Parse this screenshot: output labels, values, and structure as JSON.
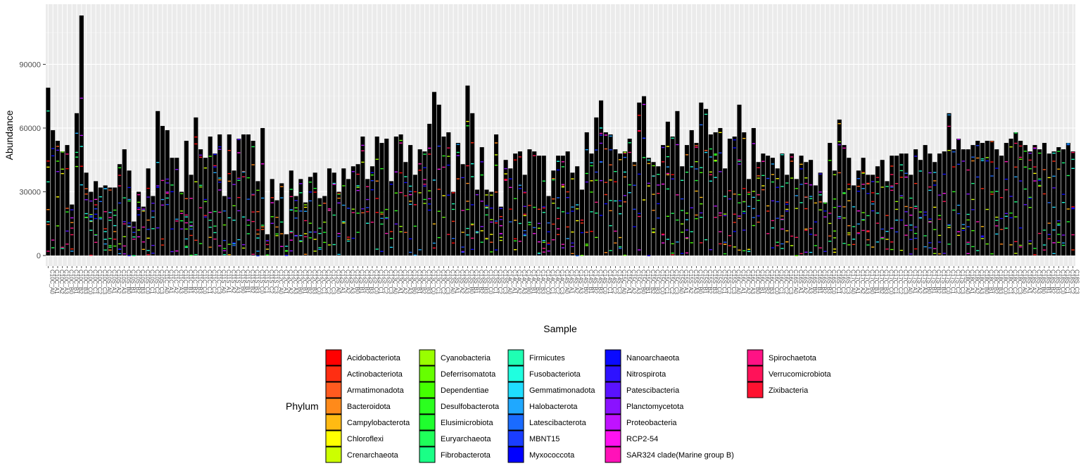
{
  "chart_data": {
    "type": "bar",
    "stacked": true,
    "xlabel": "Sample",
    "ylabel": "Abundance",
    "ylim": [
      0,
      119000
    ],
    "y_ticks": [
      0,
      30000,
      60000,
      90000
    ],
    "y_tick_labels": [
      "0",
      "30000",
      "60000",
      "90000"
    ],
    "grid": true,
    "legend_position": "bottom",
    "legend_title": "Phylum",
    "legend": [
      {
        "name": "Acidobacteriota",
        "color": "#FF0000"
      },
      {
        "name": "Actinobacteriota",
        "color": "#FF2E12"
      },
      {
        "name": "Armatimonadota",
        "color": "#FF5A1F"
      },
      {
        "name": "Bacteroidota",
        "color": "#FF8A1A"
      },
      {
        "name": "Campylobacterota",
        "color": "#FFBA12"
      },
      {
        "name": "Chloroflexi",
        "color": "#FFFF00"
      },
      {
        "name": "Crenarchaeota",
        "color": "#CCFF00"
      },
      {
        "name": "Cyanobacteria",
        "color": "#99FF00"
      },
      {
        "name": "Deferrisomatota",
        "color": "#66FF00"
      },
      {
        "name": "Dependentiae",
        "color": "#44FF00"
      },
      {
        "name": "Desulfobacterota",
        "color": "#2BFF1F"
      },
      {
        "name": "Elusimicrobiota",
        "color": "#1FFF2E"
      },
      {
        "name": "Euryarchaeota",
        "color": "#1FFF5A"
      },
      {
        "name": "Fibrobacterota",
        "color": "#1AFF86"
      },
      {
        "name": "Firmicutes",
        "color": "#1FFFB3"
      },
      {
        "name": "Fusobacteriota",
        "color": "#1FFFE0"
      },
      {
        "name": "Gemmatimonadota",
        "color": "#1FDDFF"
      },
      {
        "name": "Halobacterota",
        "color": "#1FA8FF"
      },
      {
        "name": "Latescibacterota",
        "color": "#1A6BFF"
      },
      {
        "name": "MBNT15",
        "color": "#1A3DFF"
      },
      {
        "name": "Myxococcota",
        "color": "#0000FF"
      },
      {
        "name": "Nanoarchaeota",
        "color": "#0A0AFF"
      },
      {
        "name": "Nitrospirota",
        "color": "#2E12FF"
      },
      {
        "name": "Patescibacteria",
        "color": "#5A12FF"
      },
      {
        "name": "Planctomycetota",
        "color": "#8A12FF"
      },
      {
        "name": "Proteobacteria",
        "color": "#C012FF"
      },
      {
        "name": "RCP2-54",
        "color": "#FF12F0"
      },
      {
        "name": "SAR324 clade(Marine group B)",
        "color": "#FF12B8"
      },
      {
        "name": "Spirochaetota",
        "color": "#FF1285"
      },
      {
        "name": "Verrucomicrobiota",
        "color": "#FF1259"
      },
      {
        "name": "Zixibacteria",
        "color": "#FF1230"
      }
    ],
    "sample_count": 216,
    "sample_totals": [
      79000,
      59000,
      54000,
      49000,
      52000,
      24000,
      67000,
      113000,
      39000,
      30000,
      35000,
      32000,
      33000,
      32000,
      32000,
      43000,
      50000,
      40000,
      16000,
      30000,
      23000,
      41000,
      28000,
      68000,
      61000,
      59000,
      46000,
      46000,
      30000,
      54000,
      38000,
      65000,
      50000,
      46000,
      56000,
      48000,
      57000,
      28000,
      57000,
      40000,
      55000,
      57000,
      57000,
      54000,
      35000,
      60000,
      10000,
      36000,
      26000,
      34000,
      10000,
      40000,
      28000,
      36000,
      25000,
      37000,
      39000,
      27000,
      28000,
      41000,
      39000,
      30000,
      41000,
      36000,
      42000,
      43000,
      56000,
      36000,
      42000,
      56000,
      53000,
      55000,
      35000,
      56000,
      57000,
      44000,
      52000,
      38000,
      50000,
      49000,
      62000,
      77000,
      71000,
      56000,
      58000,
      30000,
      53000,
      43000,
      80000,
      67000,
      31000,
      51000,
      31000,
      30000,
      57000,
      23000,
      45000,
      41000,
      48000,
      49000,
      38000,
      50000,
      49000,
      47000,
      47000,
      28000,
      40000,
      47000,
      47000,
      49000,
      39000,
      42000,
      31000,
      58000,
      48000,
      65000,
      73000,
      58000,
      57000,
      50000,
      48000,
      49000,
      55000,
      44000,
      72000,
      75000,
      46000,
      44000,
      42000,
      52000,
      63000,
      56000,
      68000,
      42000,
      52000,
      59000,
      53000,
      72000,
      69000,
      57000,
      58000,
      60000,
      41000,
      55000,
      56000,
      71000,
      58000,
      36000,
      60000,
      44000,
      48000,
      47000,
      46000,
      41000,
      48000,
      38000,
      48000,
      36000,
      47000,
      44000,
      45000,
      33000,
      39000,
      25000,
      53000,
      40000,
      64000,
      52000,
      46000,
      33000,
      40000,
      46000,
      38000,
      38000,
      42000,
      45000,
      35000,
      47000,
      47000,
      48000,
      48000,
      38000,
      50000,
      45000,
      52000,
      48000,
      44000,
      48000,
      49000,
      67000,
      50000,
      55000,
      50000,
      50000,
      52000,
      54000,
      53000,
      54000,
      54000,
      50000,
      47000,
      53000,
      55000,
      58000,
      54000,
      52000,
      49000,
      52000,
      50000,
      53000,
      48000,
      49000,
      51000,
      50000,
      53000,
      49000
    ],
    "sample_labels": [
      "C10C_A0",
      "C10C_A1",
      "C10C_A2",
      "C10C_A3",
      "C10C_B0",
      "C10C_B1",
      "C10C_B2",
      "C10C_B3",
      "C10C_C0",
      "C10C_C1",
      "C10C_C2",
      "C10C_C3",
      "C10S_A0",
      "C10S_A1",
      "C10S_A2",
      "C10S_A3",
      "C10S_B0",
      "C10S_B1",
      "C10S_B2",
      "C10S_B3",
      "C10S_C0",
      "C10S_C1",
      "C10S_C2",
      "C10S_C3",
      "C11C_A0",
      "C11C_A1",
      "C11C_A2",
      "C11C_A3",
      "C11C_B0",
      "C11C_B1",
      "C11C_B2",
      "C11C_B3",
      "C11C_C0",
      "C11C_C1",
      "C11C_C2",
      "C11C_C3",
      "C11S_A0",
      "C11S_A1",
      "C11S_A2",
      "C11S_A3",
      "C11S_B0",
      "C11S_B1",
      "C11S_B2",
      "C11S_B3",
      "C11S_C0",
      "C11S_C1",
      "C11S_C2",
      "C11S_C3",
      "C12C_A0",
      "C12C_A1",
      "C12C_A2",
      "C12C_A3",
      "C12C_B0",
      "C12C_B1",
      "C12C_B2",
      "C12C_B3",
      "C12C_C0",
      "C12C_C1",
      "C12C_C2",
      "C12C_C3",
      "C12S_A0",
      "C12S_A1",
      "C12S_A2",
      "C12S_A3",
      "C12S_B0",
      "C12S_B1",
      "C12S_B2",
      "C12S_B3",
      "C12S_C0",
      "C12S_C1",
      "C12S_C2",
      "C12S_C3",
      "C13C_A0",
      "C13C_A1",
      "C13C_A2",
      "C13C_A3",
      "C13C_B0",
      "C13C_B1",
      "C13C_B2",
      "C13C_B3",
      "C13C_C0",
      "C13C_C1",
      "C13C_C2",
      "C13C_C3",
      "C13S_A0",
      "C13S_A1",
      "C13S_A2",
      "C13S_A3",
      "C13S_B0",
      "C13S_B1",
      "C13S_B2",
      "C13S_B3",
      "C13S_C0",
      "C13S_C1",
      "C13S_C2",
      "C13S_C3",
      "C14C_A0",
      "C14C_A1",
      "C14C_A2",
      "C14C_A3",
      "C14C_B0",
      "C14C_B1",
      "C14C_B2",
      "C14C_B3",
      "C14C_C0",
      "C14C_C1",
      "C14C_C2",
      "C14C_C3",
      "C14S_A0",
      "C14S_A1",
      "C14S_A2",
      "C14S_A3",
      "C14S_B0",
      "C14S_B1",
      "C14S_B2",
      "C14S_B3",
      "C14S_C0",
      "C14S_C1",
      "C14S_C2",
      "C14S_C3",
      "C15C_A0",
      "C15C_A1",
      "C15C_A2",
      "C15C_A3",
      "C15C_B0",
      "C15C_B1",
      "C15C_B2",
      "C15C_B3",
      "C15C_C0",
      "C15C_C1",
      "C15C_C2",
      "C15C_C3",
      "C15S_A0",
      "C15S_A1",
      "C15S_A2",
      "C15S_A3",
      "C15S_B0",
      "C15S_B1",
      "C15S_B2",
      "C15S_B3",
      "C15S_C0",
      "C15S_C1",
      "C15S_C2",
      "C15S_C3",
      "C16C_A0",
      "C16C_A1",
      "C16C_A2",
      "C16C_A3",
      "C16C_B0",
      "C16C_B1",
      "C16C_B2",
      "C16C_B3",
      "C16C_C0",
      "C16C_C1",
      "C16C_C2",
      "C16C_C3",
      "C16S_A0",
      "C16S_A1",
      "C16S_A2",
      "C16S_A3",
      "C16S_B0",
      "C16S_B1",
      "C16S_B2",
      "C16S_B3",
      "C16S_C0",
      "C16S_C1",
      "C16S_C2",
      "C16S_C3",
      "C17C_A0",
      "C17C_A1",
      "C17C_A2",
      "C17C_A3",
      "C17C_B0",
      "C17C_B1",
      "C17C_B2",
      "C17C_B3",
      "C17C_C0",
      "C17C_C1",
      "C17C_C2",
      "C17C_C3",
      "C17S_A0",
      "C17S_A1",
      "C17S_A2",
      "C17S_A3",
      "C17S_B0",
      "C17S_B1",
      "C17S_B2",
      "C17S_B3",
      "C17S_C0",
      "C17S_C1",
      "C17S_C2",
      "C17S_C3",
      "C18C_A0",
      "C18C_A1",
      "C18C_A2",
      "C18C_A3",
      "C18C_B0",
      "C18C_B1",
      "C18C_B2",
      "C18C_B3",
      "C18C_C0",
      "C18C_C1",
      "C18C_C2",
      "C18C_C3",
      "C18S_A0",
      "C18S_A1",
      "C18S_A2",
      "C18S_A3",
      "C18S_B0",
      "C18S_B1",
      "C18S_B2",
      "C18S_B3",
      "C18S_C0",
      "C18S_C1",
      "C18S_C2",
      "C18S_C3"
    ]
  }
}
